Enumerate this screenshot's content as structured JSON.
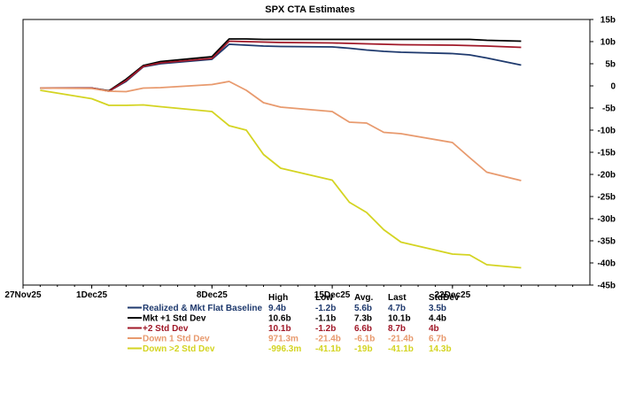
{
  "chart_data": {
    "type": "line",
    "title": "SPX CTA Estimates",
    "xlabel": "",
    "ylabel": "",
    "x_range": [
      "2025-11-27",
      "2025-12-30"
    ],
    "ylim": [
      -45,
      15
    ],
    "y_axis_side": "right",
    "y_ticks": [
      "15b",
      "10b",
      "5b",
      "0",
      "-5b",
      "-10b",
      "-15b",
      "-20b",
      "-25b",
      "-30b",
      "-35b",
      "-40b",
      "-45b"
    ],
    "x_ticks": [
      {
        "label": "27Nov25",
        "date": "2025-11-27"
      },
      {
        "label": "1Dec25",
        "date": "2025-12-01"
      },
      {
        "label": "8Dec25",
        "date": "2025-12-08"
      },
      {
        "label": "15Dec25",
        "date": "2025-12-15"
      },
      {
        "label": "22Dec25",
        "date": "2025-12-22"
      }
    ],
    "grid": false,
    "legend": "bottom-left",
    "dates": [
      "2025-11-28",
      "2025-12-01",
      "2025-12-02",
      "2025-12-03",
      "2025-12-04",
      "2025-12-05",
      "2025-12-08",
      "2025-12-09",
      "2025-12-10",
      "2025-12-11",
      "2025-12-12",
      "2025-12-15",
      "2025-12-16",
      "2025-12-17",
      "2025-12-18",
      "2025-12-19",
      "2025-12-22",
      "2025-12-23",
      "2025-12-24",
      "2025-12-26"
    ],
    "series": [
      {
        "name": "Realized & Mkt Flat Baseline",
        "color": "#1f3a6e",
        "values": [
          -0.5,
          -0.5,
          -1.2,
          1.0,
          4.3,
          5.0,
          6.0,
          9.4,
          9.2,
          9.0,
          8.9,
          8.8,
          8.5,
          8.1,
          7.8,
          7.6,
          7.3,
          7.0,
          6.3,
          4.7
        ]
      },
      {
        "name": "Mkt +1 Std Dev",
        "color": "#000000",
        "values": [
          -0.5,
          -0.5,
          -1.1,
          1.5,
          4.6,
          5.5,
          6.6,
          10.6,
          10.6,
          10.5,
          10.5,
          10.5,
          10.5,
          10.5,
          10.5,
          10.5,
          10.5,
          10.5,
          10.3,
          10.1
        ]
      },
      {
        "name": "+2 Std Dev",
        "color": "#a01828",
        "values": [
          -0.5,
          -0.5,
          -1.2,
          1.2,
          4.4,
          5.2,
          6.2,
          10.1,
          10.0,
          9.9,
          9.8,
          9.7,
          9.6,
          9.5,
          9.4,
          9.3,
          9.2,
          9.1,
          9.0,
          8.7
        ]
      },
      {
        "name": "Down 1 Std Dev",
        "color": "#e89a6e",
        "values": [
          -0.5,
          -0.6,
          -1.2,
          -1.3,
          -0.5,
          -0.4,
          0.3,
          1.0,
          -1.0,
          -3.8,
          -4.8,
          -5.8,
          -8.2,
          -8.4,
          -10.5,
          -10.8,
          -12.8,
          -16.2,
          -19.5,
          -21.4
        ]
      },
      {
        "name": "Down >2 Std Dev",
        "color": "#d4d422",
        "values": [
          -1.0,
          -2.9,
          -4.4,
          -4.4,
          -4.3,
          -4.7,
          -5.8,
          -9.0,
          -10.0,
          -15.5,
          -18.6,
          -21.3,
          -26.3,
          -28.6,
          -32.5,
          -35.3,
          -38.0,
          -38.2,
          -40.4,
          -41.1
        ]
      }
    ],
    "stats": {
      "headers": [
        "High",
        "Low",
        "Avg.",
        "Last",
        "StdDev"
      ],
      "rows": [
        [
          "9.4b",
          "-1.2b",
          "5.6b",
          "4.7b",
          "3.5b"
        ],
        [
          "10.6b",
          "-1.1b",
          "7.3b",
          "10.1b",
          "4.4b"
        ],
        [
          "10.1b",
          "-1.2b",
          "6.6b",
          "8.7b",
          "4b"
        ],
        [
          "971.3m",
          "-21.4b",
          "-6.1b",
          "-21.4b",
          "6.7b"
        ],
        [
          "-996.3m",
          "-41.1b",
          "-19b",
          "-41.1b",
          "14.3b"
        ]
      ]
    }
  }
}
